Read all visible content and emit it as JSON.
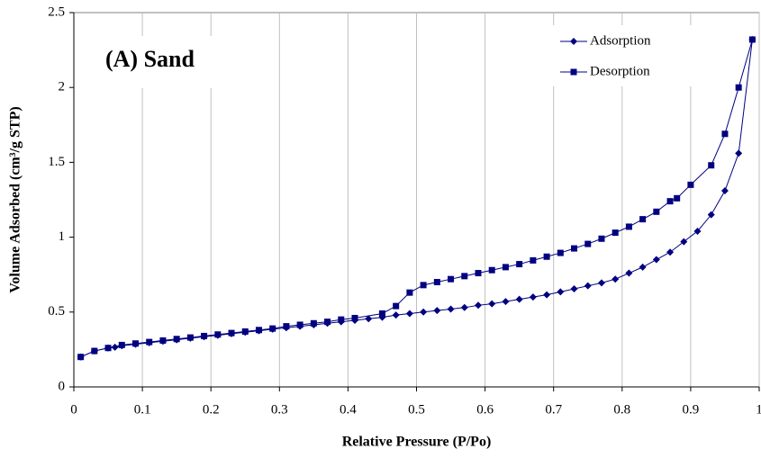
{
  "chart_data": {
    "type": "line",
    "annotation": "(A) Sand",
    "xlabel": "Relative Pressure (P/Po)",
    "ylabel": "Volume Adsorbed (cm³/g STP)",
    "xlim": [
      0,
      1
    ],
    "ylim": [
      0,
      2.5
    ],
    "xticks": [
      0,
      0.1,
      0.2,
      0.3,
      0.4,
      0.5,
      0.6,
      0.7,
      0.8,
      0.9,
      1
    ],
    "yticks": [
      0,
      0.5,
      1,
      1.5,
      2,
      2.5
    ],
    "xgrid": true,
    "legend": "upper right",
    "series": [
      {
        "name": "Adsorption",
        "color": "#000080",
        "marker": "diamond",
        "x": [
          0.01,
          0.03,
          0.05,
          0.06,
          0.07,
          0.09,
          0.11,
          0.13,
          0.15,
          0.17,
          0.19,
          0.21,
          0.23,
          0.25,
          0.27,
          0.29,
          0.31,
          0.33,
          0.35,
          0.37,
          0.39,
          0.41,
          0.43,
          0.45,
          0.47,
          0.49,
          0.51,
          0.53,
          0.55,
          0.57,
          0.59,
          0.61,
          0.63,
          0.65,
          0.67,
          0.69,
          0.71,
          0.73,
          0.75,
          0.77,
          0.79,
          0.81,
          0.83,
          0.85,
          0.87,
          0.89,
          0.91,
          0.93,
          0.95,
          0.97,
          0.99
        ],
        "values": [
          0.2,
          0.24,
          0.26,
          0.265,
          0.275,
          0.285,
          0.295,
          0.305,
          0.315,
          0.325,
          0.335,
          0.345,
          0.355,
          0.365,
          0.375,
          0.385,
          0.395,
          0.405,
          0.415,
          0.425,
          0.435,
          0.445,
          0.455,
          0.465,
          0.48,
          0.49,
          0.5,
          0.51,
          0.52,
          0.53,
          0.545,
          0.555,
          0.57,
          0.585,
          0.6,
          0.615,
          0.635,
          0.655,
          0.675,
          0.695,
          0.72,
          0.76,
          0.8,
          0.85,
          0.9,
          0.97,
          1.04,
          1.15,
          1.31,
          1.56,
          2.32
        ]
      },
      {
        "name": "Desorption",
        "color": "#000080",
        "marker": "square",
        "x": [
          0.01,
          0.03,
          0.05,
          0.07,
          0.09,
          0.11,
          0.13,
          0.15,
          0.17,
          0.19,
          0.21,
          0.23,
          0.25,
          0.27,
          0.29,
          0.31,
          0.33,
          0.35,
          0.37,
          0.39,
          0.41,
          0.45,
          0.47,
          0.49,
          0.51,
          0.53,
          0.55,
          0.57,
          0.59,
          0.61,
          0.63,
          0.65,
          0.67,
          0.69,
          0.71,
          0.73,
          0.75,
          0.77,
          0.79,
          0.81,
          0.83,
          0.85,
          0.87,
          0.88,
          0.9,
          0.93,
          0.95,
          0.97,
          0.99
        ],
        "values": [
          0.2,
          0.24,
          0.26,
          0.28,
          0.29,
          0.3,
          0.31,
          0.32,
          0.33,
          0.34,
          0.35,
          0.36,
          0.37,
          0.38,
          0.39,
          0.405,
          0.415,
          0.425,
          0.435,
          0.45,
          0.46,
          0.49,
          0.54,
          0.63,
          0.68,
          0.7,
          0.72,
          0.74,
          0.76,
          0.78,
          0.8,
          0.82,
          0.845,
          0.87,
          0.895,
          0.925,
          0.955,
          0.99,
          1.03,
          1.07,
          1.12,
          1.17,
          1.24,
          1.26,
          1.35,
          1.48,
          1.69,
          2.0,
          2.32
        ]
      }
    ]
  }
}
